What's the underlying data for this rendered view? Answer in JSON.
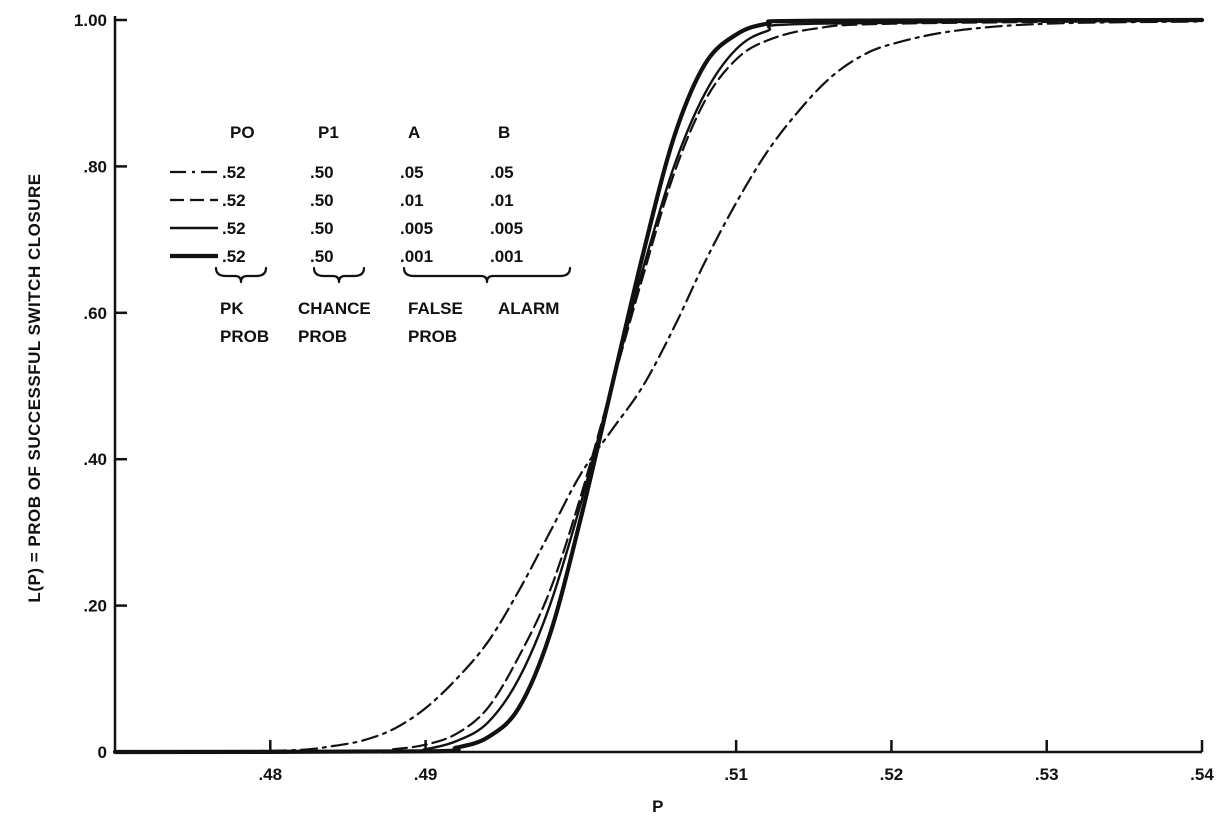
{
  "chart_data": {
    "type": "line",
    "title": "",
    "xlabel": "P",
    "ylabel": "L(P) = PROB OF SUCCESSFUL SWITCH CLOSURE",
    "xlim": [
      0.47,
      0.54
    ],
    "ylim": [
      0,
      1.0
    ],
    "x_ticks": [
      {
        "value": 0.48,
        "label": ".48"
      },
      {
        "value": 0.49,
        "label": ".49"
      },
      {
        "value": 0.51,
        "label": ".51"
      },
      {
        "value": 0.52,
        "label": ".52"
      },
      {
        "value": 0.53,
        "label": ".53"
      },
      {
        "value": 0.54,
        "label": ".54"
      }
    ],
    "y_ticks": [
      {
        "value": 0,
        "label": "0"
      },
      {
        "value": 0.2,
        "label": ".20"
      },
      {
        "value": 0.4,
        "label": ".40"
      },
      {
        "value": 0.6,
        "label": ".60"
      },
      {
        "value": 0.8,
        "label": ".80"
      },
      {
        "value": 1.0,
        "label": "1.00"
      }
    ],
    "grid": false,
    "legend_headers": [
      "PO",
      "P1",
      "A",
      "B"
    ],
    "legend_group_labels": [
      {
        "line1": "PK",
        "line2": "PROB"
      },
      {
        "line1": "CHANCE",
        "line2": "PROB"
      },
      {
        "line1": "FALSE",
        "line2": "PROB"
      },
      {
        "line1": "ALARM",
        "line2": ""
      }
    ],
    "series": [
      {
        "style": "dash-dot",
        "legend": [
          ".52",
          ".50",
          ".05",
          ".05"
        ],
        "points": [
          [
            0.47,
            0
          ],
          [
            0.478,
            0.001
          ],
          [
            0.482,
            0.003
          ],
          [
            0.484,
            0.008
          ],
          [
            0.486,
            0.016
          ],
          [
            0.488,
            0.032
          ],
          [
            0.49,
            0.06
          ],
          [
            0.492,
            0.1
          ],
          [
            0.494,
            0.15
          ],
          [
            0.496,
            0.22
          ],
          [
            0.498,
            0.3
          ],
          [
            0.5,
            0.38
          ],
          [
            0.502,
            0.44
          ],
          [
            0.504,
            0.5
          ],
          [
            0.506,
            0.58
          ],
          [
            0.508,
            0.67
          ],
          [
            0.51,
            0.75
          ],
          [
            0.512,
            0.82
          ],
          [
            0.514,
            0.875
          ],
          [
            0.516,
            0.92
          ],
          [
            0.518,
            0.95
          ],
          [
            0.52,
            0.967
          ],
          [
            0.524,
            0.985
          ],
          [
            0.53,
            0.995
          ],
          [
            0.54,
            0.998
          ]
        ]
      },
      {
        "style": "dashed",
        "legend": [
          ".52",
          ".50",
          ".01",
          ".01"
        ],
        "points": [
          [
            0.47,
            0
          ],
          [
            0.486,
            0.001
          ],
          [
            0.488,
            0.004
          ],
          [
            0.49,
            0.01
          ],
          [
            0.492,
            0.025
          ],
          [
            0.494,
            0.06
          ],
          [
            0.496,
            0.13
          ],
          [
            0.498,
            0.22
          ],
          [
            0.5,
            0.35
          ],
          [
            0.502,
            0.5
          ],
          [
            0.504,
            0.65
          ],
          [
            0.506,
            0.79
          ],
          [
            0.508,
            0.89
          ],
          [
            0.51,
            0.946
          ],
          [
            0.512,
            0.972
          ],
          [
            0.515,
            0.988
          ],
          [
            0.52,
            0.995
          ],
          [
            0.54,
            0.999
          ]
        ]
      },
      {
        "style": "solid",
        "legend": [
          ".52",
          ".50",
          ".005",
          ".005"
        ],
        "points": [
          [
            0.47,
            0
          ],
          [
            0.488,
            0.001
          ],
          [
            0.49,
            0.004
          ],
          [
            0.492,
            0.015
          ],
          [
            0.494,
            0.04
          ],
          [
            0.496,
            0.1
          ],
          [
            0.498,
            0.2
          ],
          [
            0.5,
            0.34
          ],
          [
            0.502,
            0.5
          ],
          [
            0.504,
            0.66
          ],
          [
            0.506,
            0.8
          ],
          [
            0.508,
            0.9
          ],
          [
            0.51,
            0.96
          ],
          [
            0.512,
            0.985
          ],
          [
            0.515,
            0.995
          ],
          [
            0.54,
            1.0
          ]
        ]
      },
      {
        "style": "thick-solid",
        "legend": [
          ".52",
          ".50",
          ".001",
          ".001"
        ],
        "points": [
          [
            0.47,
            0
          ],
          [
            0.49,
            0.001
          ],
          [
            0.492,
            0.006
          ],
          [
            0.494,
            0.02
          ],
          [
            0.496,
            0.06
          ],
          [
            0.498,
            0.16
          ],
          [
            0.5,
            0.32
          ],
          [
            0.502,
            0.5
          ],
          [
            0.504,
            0.68
          ],
          [
            0.506,
            0.84
          ],
          [
            0.508,
            0.94
          ],
          [
            0.51,
            0.98
          ],
          [
            0.512,
            0.995
          ],
          [
            0.515,
            0.999
          ],
          [
            0.54,
            1.0
          ]
        ]
      }
    ]
  }
}
